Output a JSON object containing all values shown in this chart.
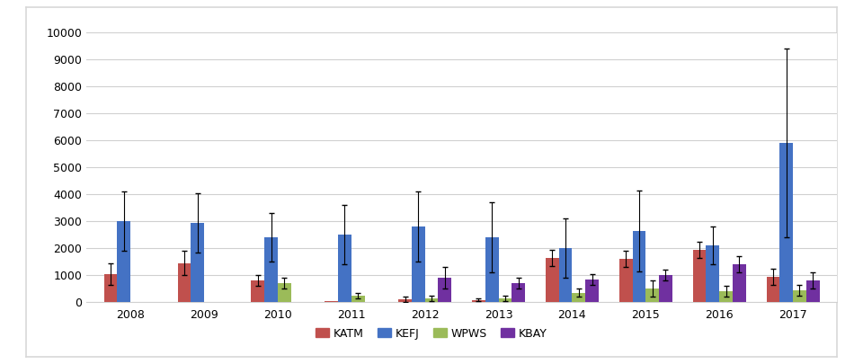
{
  "years": [
    2008,
    2009,
    2010,
    2011,
    2012,
    2013,
    2014,
    2015,
    2016,
    2017
  ],
  "sites": [
    "KATM",
    "KEFJ",
    "WPWS",
    "KBAY"
  ],
  "colors": [
    "#c0504d",
    "#4472c4",
    "#9bbb59",
    "#7030a0"
  ],
  "values": {
    "KATM": [
      1050,
      1450,
      800,
      50,
      100,
      80,
      1650,
      1600,
      1950,
      950
    ],
    "KEFJ": [
      3000,
      2950,
      2400,
      2500,
      2800,
      2400,
      2000,
      2650,
      2100,
      5900
    ],
    "WPWS": [
      0,
      0,
      700,
      250,
      150,
      150,
      350,
      500,
      400,
      450
    ],
    "KBAY": [
      0,
      0,
      0,
      0,
      900,
      700,
      850,
      1000,
      1400,
      800
    ]
  },
  "errors": {
    "KATM": [
      400,
      450,
      200,
      0,
      100,
      50,
      300,
      300,
      300,
      300
    ],
    "KEFJ": [
      1100,
      1100,
      900,
      1100,
      1300,
      1300,
      1100,
      1500,
      700,
      3500
    ],
    "WPWS": [
      0,
      0,
      200,
      100,
      100,
      100,
      150,
      300,
      200,
      200
    ],
    "KBAY": [
      0,
      0,
      0,
      0,
      400,
      200,
      200,
      200,
      300,
      300
    ]
  },
  "ylim": [
    0,
    10000
  ],
  "yticks": [
    0,
    1000,
    2000,
    3000,
    4000,
    5000,
    6000,
    7000,
    8000,
    9000,
    10000
  ],
  "background_color": "#ffffff",
  "box_color": "#d8d8d8",
  "grid_color": "#d0d0d0",
  "bar_width": 0.18,
  "legend_labels": [
    "KATM",
    "KEFJ",
    "WPWS",
    "KBAY"
  ]
}
